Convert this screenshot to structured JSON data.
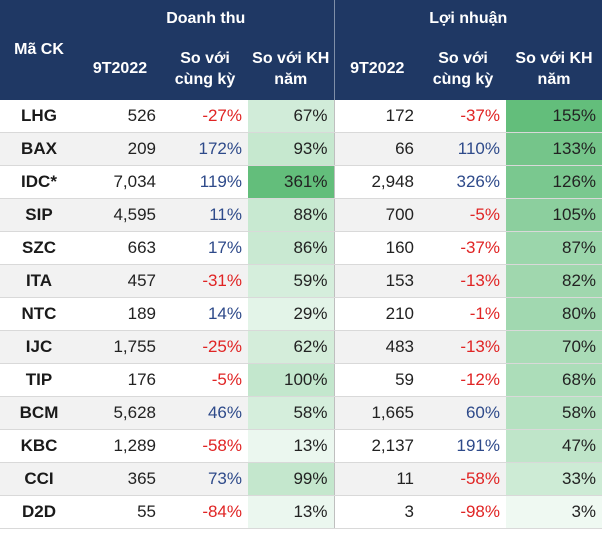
{
  "header": {
    "ticker_label": "Mã CK",
    "revenue_group": "Doanh thu",
    "profit_group": "Lợi nhuận",
    "period": "9T2022",
    "yoy": "So với cùng kỳ",
    "vs_plan": "So với KH năm"
  },
  "colors": {
    "header_bg": "#1f3864",
    "positive": "#2e4a8a",
    "negative": "#e02424",
    "scale_low": "#f4fbf6",
    "scale_high": "#63be7b"
  },
  "rows": [
    {
      "ticker": "LHG",
      "rev": "526",
      "rev_yoy": "-27%",
      "rev_plan": "67%",
      "rev_plan_v": 67,
      "pro": "172",
      "pro_yoy": "-37%",
      "pro_plan": "155%",
      "pro_plan_v": 155
    },
    {
      "ticker": "BAX",
      "rev": "209",
      "rev_yoy": "172%",
      "rev_plan": "93%",
      "rev_plan_v": 93,
      "pro": "66",
      "pro_yoy": "110%",
      "pro_plan": "133%",
      "pro_plan_v": 133
    },
    {
      "ticker": "IDC*",
      "rev": "7,034",
      "rev_yoy": "119%",
      "rev_plan": "361%",
      "rev_plan_v": 361,
      "pro": "2,948",
      "pro_yoy": "326%",
      "pro_plan": "126%",
      "pro_plan_v": 126
    },
    {
      "ticker": "SIP",
      "rev": "4,595",
      "rev_yoy": "11%",
      "rev_plan": "88%",
      "rev_plan_v": 88,
      "pro": "700",
      "pro_yoy": "-5%",
      "pro_plan": "105%",
      "pro_plan_v": 105
    },
    {
      "ticker": "SZC",
      "rev": "663",
      "rev_yoy": "17%",
      "rev_plan": "86%",
      "rev_plan_v": 86,
      "pro": "160",
      "pro_yoy": "-37%",
      "pro_plan": "87%",
      "pro_plan_v": 87
    },
    {
      "ticker": "ITA",
      "rev": "457",
      "rev_yoy": "-31%",
      "rev_plan": "59%",
      "rev_plan_v": 59,
      "pro": "153",
      "pro_yoy": "-13%",
      "pro_plan": "82%",
      "pro_plan_v": 82
    },
    {
      "ticker": "NTC",
      "rev": "189",
      "rev_yoy": "14%",
      "rev_plan": "29%",
      "rev_plan_v": 29,
      "pro": "210",
      "pro_yoy": "-1%",
      "pro_plan": "80%",
      "pro_plan_v": 80
    },
    {
      "ticker": "IJC",
      "rev": "1,755",
      "rev_yoy": "-25%",
      "rev_plan": "62%",
      "rev_plan_v": 62,
      "pro": "483",
      "pro_yoy": "-13%",
      "pro_plan": "70%",
      "pro_plan_v": 70
    },
    {
      "ticker": "TIP",
      "rev": "176",
      "rev_yoy": "-5%",
      "rev_plan": "100%",
      "rev_plan_v": 100,
      "pro": "59",
      "pro_yoy": "-12%",
      "pro_plan": "68%",
      "pro_plan_v": 68
    },
    {
      "ticker": "BCM",
      "rev": "5,628",
      "rev_yoy": "46%",
      "rev_plan": "58%",
      "rev_plan_v": 58,
      "pro": "1,665",
      "pro_yoy": "60%",
      "pro_plan": "58%",
      "pro_plan_v": 58
    },
    {
      "ticker": "KBC",
      "rev": "1,289",
      "rev_yoy": "-58%",
      "rev_plan": "13%",
      "rev_plan_v": 13,
      "pro": "2,137",
      "pro_yoy": "191%",
      "pro_plan": "47%",
      "pro_plan_v": 47
    },
    {
      "ticker": "CCI",
      "rev": "365",
      "rev_yoy": "73%",
      "rev_plan": "99%",
      "rev_plan_v": 99,
      "pro": "11",
      "pro_yoy": "-58%",
      "pro_plan": "33%",
      "pro_plan_v": 33
    },
    {
      "ticker": "D2D",
      "rev": "55",
      "rev_yoy": "-84%",
      "rev_plan": "13%",
      "rev_plan_v": 13,
      "pro": "3",
      "pro_yoy": "-98%",
      "pro_plan": "3%",
      "pro_plan_v": 3
    }
  ]
}
